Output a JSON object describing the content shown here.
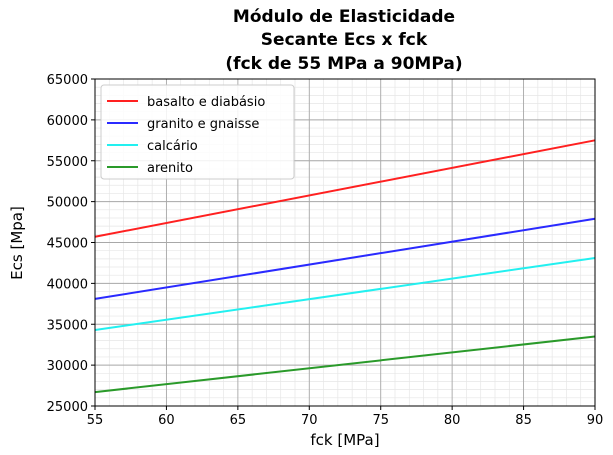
{
  "chart_data": {
    "type": "line",
    "title": [
      "Módulo de Elasticidade",
      "Secante Ecs x fck",
      "(fck de 55 MPa a 90MPa)"
    ],
    "xlabel": "fck [MPa]",
    "ylabel": "Ecs [Mpa]",
    "xlim": [
      55,
      90
    ],
    "ylim": [
      25000,
      65000
    ],
    "xticks": [
      55,
      60,
      65,
      70,
      75,
      80,
      85,
      90
    ],
    "yticks": [
      25000,
      30000,
      35000,
      40000,
      45000,
      50000,
      55000,
      60000,
      65000
    ],
    "grid": true,
    "minor_grid": true,
    "legend_position": "top-left",
    "series": [
      {
        "name": "basalto e diabásio",
        "color": "#ff2020",
        "x": [
          55,
          90
        ],
        "y": [
          45700,
          57500
        ]
      },
      {
        "name": "granito e gnaisse",
        "color": "#2a2aff",
        "x": [
          55,
          90
        ],
        "y": [
          38100,
          47900
        ]
      },
      {
        "name": "calcário",
        "color": "#22f0f0",
        "x": [
          55,
          90
        ],
        "y": [
          34300,
          43100
        ]
      },
      {
        "name": "arenito",
        "color": "#2a9a2a",
        "x": [
          55,
          90
        ],
        "y": [
          26700,
          33500
        ]
      }
    ]
  }
}
